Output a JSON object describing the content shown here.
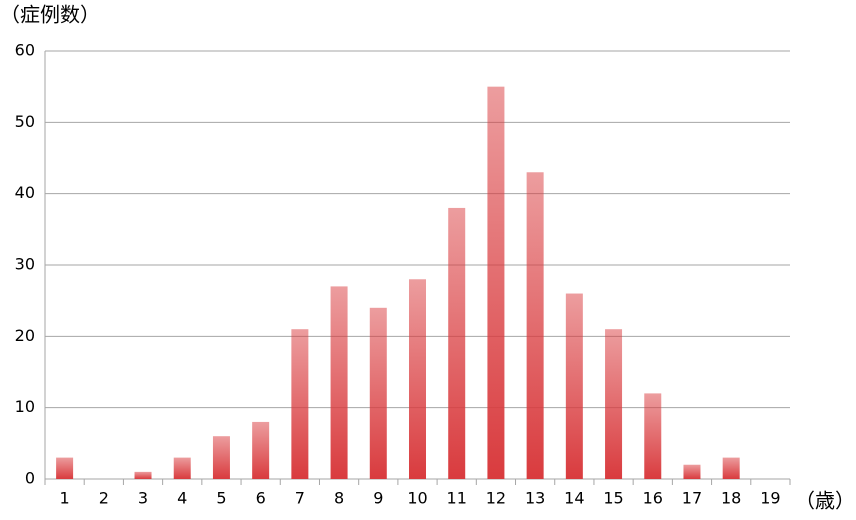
{
  "chart_data": {
    "type": "bar",
    "y_label": "（症例数）",
    "x_label": "（歳）",
    "categories": [
      "1",
      "2",
      "3",
      "4",
      "5",
      "6",
      "7",
      "8",
      "9",
      "10",
      "11",
      "12",
      "13",
      "14",
      "15",
      "16",
      "17",
      "18",
      "19"
    ],
    "values": [
      3,
      0,
      1,
      3,
      6,
      8,
      21,
      27,
      24,
      28,
      38,
      55,
      43,
      26,
      21,
      12,
      2,
      3,
      0
    ],
    "color": "#d93b3e",
    "ylim": [
      0,
      60
    ],
    "yticks": [
      0,
      10,
      20,
      30,
      40,
      50,
      60
    ],
    "grid": true
  }
}
